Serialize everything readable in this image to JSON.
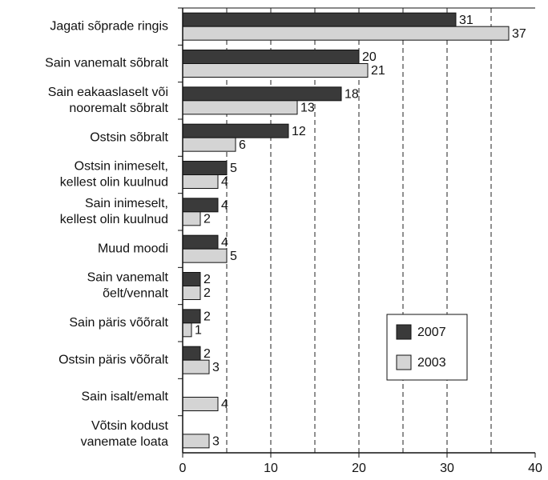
{
  "chart_data": {
    "type": "barh",
    "categories": [
      "Jagati sõprade ringis",
      "Sain vanemalt sõbralt",
      "Sain eakaaslaselt või\nnooremalt sõbralt",
      "Ostsin sõbralt",
      "Ostsin inimeselt,\nkellest olin kuulnud",
      "Sain inimeselt,\nkellest olin kuulnud",
      "Muud moodi",
      "Sain vanemalt\nõelt/vennalt",
      "Sain päris võõralt",
      "Ostsin päris võõralt",
      "Sain isalt/emalt",
      "Võtsin kodust\nvanemate loata"
    ],
    "series": [
      {
        "name": "2007",
        "color": "#3a3a3a",
        "values": [
          31,
          20,
          18,
          12,
          5,
          4,
          4,
          2,
          2,
          2,
          null,
          null
        ]
      },
      {
        "name": "2003",
        "color": "#d4d4d4",
        "values": [
          37,
          21,
          13,
          6,
          4,
          2,
          5,
          2,
          1,
          3,
          4,
          3
        ]
      }
    ],
    "xlim": [
      0,
      40
    ],
    "xticks": [
      0,
      10,
      20,
      30,
      40
    ],
    "grid_lines": [
      5,
      10,
      15,
      20,
      25,
      30,
      35
    ],
    "grid_style": "dashed",
    "legend": "lower right"
  }
}
